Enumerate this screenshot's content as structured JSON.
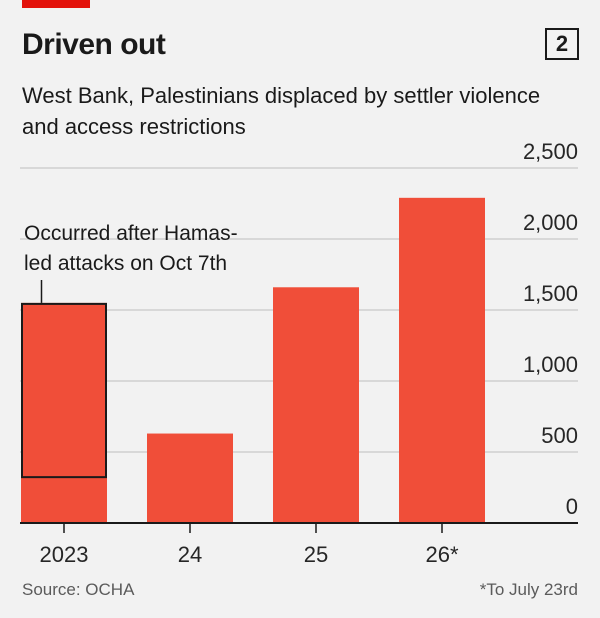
{
  "header": {
    "title": "Driven out",
    "chart_number": "2",
    "subtitle": "West Bank, Palestinians displaced by settler violence and access restrictions"
  },
  "footer": {
    "source": "Source: OCHA",
    "footnote": "*To July 23rd"
  },
  "colors": {
    "accent": "#e3120b",
    "bar": "#f04e39",
    "gridline": "#cfcfcf",
    "axis": "#1a1a1a"
  },
  "chart_data": {
    "type": "bar",
    "title": "Driven out",
    "subtitle": "West Bank, Palestinians displaced by settler violence and access restrictions",
    "categories": [
      "2023",
      "24",
      "25",
      "26*"
    ],
    "values": [
      1550,
      630,
      1660,
      2290
    ],
    "ylim": [
      0,
      2500
    ],
    "yticks": [
      0,
      500,
      1000,
      1500,
      2000,
      2500
    ],
    "ytick_labels": [
      "0",
      "500",
      "1,000",
      "1,500",
      "2,000",
      "2,500"
    ],
    "y_axis_side": "right",
    "grid": true,
    "annotation": {
      "text_lines": [
        "Occurred after Hamas-",
        "led attacks on Oct 7th"
      ],
      "category": "2023",
      "from_value": 330,
      "to_value": 1550
    }
  }
}
